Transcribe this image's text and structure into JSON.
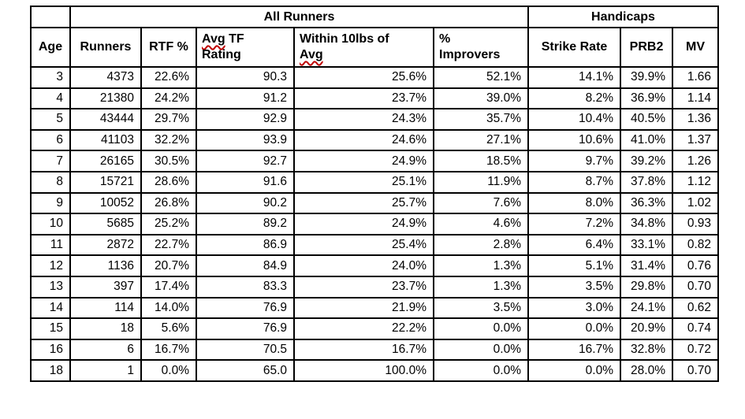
{
  "table": {
    "group_header": {
      "corner": "",
      "all_runners": "All Runners",
      "handicaps": "Handicaps"
    },
    "misspelling_color": "#c00000",
    "columns": [
      {
        "key": "age",
        "label": "Age"
      },
      {
        "key": "runners",
        "label": "Runners"
      },
      {
        "key": "rtf-pct",
        "label": "RTF %"
      },
      {
        "key": "avg-tf-rating",
        "label": "Avg TF Rating",
        "line1_word": "Avg",
        "line1_rest": " TF",
        "line2": "Rating"
      },
      {
        "key": "within-10lbs-of-avg",
        "label": "Within 10lbs of Avg",
        "line1": "Within 10lbs of",
        "line2_word": "Avg"
      },
      {
        "key": "pct-improvers",
        "label": "% Improvers",
        "line1": "%",
        "line2": "Improvers"
      },
      {
        "key": "strike-rate",
        "label": "Strike Rate"
      },
      {
        "key": "prb2",
        "label": "PRB2"
      },
      {
        "key": "mv",
        "label": "MV"
      }
    ],
    "rows": [
      [
        "3",
        "4373",
        "22.6%",
        "90.3",
        "25.6%",
        "52.1%",
        "14.1%",
        "39.9%",
        "1.66"
      ],
      [
        "4",
        "21380",
        "24.2%",
        "91.2",
        "23.7%",
        "39.0%",
        "8.2%",
        "36.9%",
        "1.14"
      ],
      [
        "5",
        "43444",
        "29.7%",
        "92.9",
        "24.3%",
        "35.7%",
        "10.4%",
        "40.5%",
        "1.36"
      ],
      [
        "6",
        "41103",
        "32.2%",
        "93.9",
        "24.6%",
        "27.1%",
        "10.6%",
        "41.0%",
        "1.37"
      ],
      [
        "7",
        "26165",
        "30.5%",
        "92.7",
        "24.9%",
        "18.5%",
        "9.7%",
        "39.2%",
        "1.26"
      ],
      [
        "8",
        "15721",
        "28.6%",
        "91.6",
        "25.1%",
        "11.9%",
        "8.7%",
        "37.8%",
        "1.12"
      ],
      [
        "9",
        "10052",
        "26.8%",
        "90.2",
        "25.7%",
        "7.6%",
        "8.0%",
        "36.3%",
        "1.02"
      ],
      [
        "10",
        "5685",
        "25.2%",
        "89.2",
        "24.9%",
        "4.6%",
        "7.2%",
        "34.8%",
        "0.93"
      ],
      [
        "11",
        "2872",
        "22.7%",
        "86.9",
        "25.4%",
        "2.8%",
        "6.4%",
        "33.1%",
        "0.82"
      ],
      [
        "12",
        "1136",
        "20.7%",
        "84.9",
        "24.0%",
        "1.3%",
        "5.1%",
        "31.4%",
        "0.76"
      ],
      [
        "13",
        "397",
        "17.4%",
        "83.3",
        "23.7%",
        "1.3%",
        "3.5%",
        "29.8%",
        "0.70"
      ],
      [
        "14",
        "114",
        "14.0%",
        "76.9",
        "21.9%",
        "3.5%",
        "3.0%",
        "24.1%",
        "0.62"
      ],
      [
        "15",
        "18",
        "5.6%",
        "76.9",
        "22.2%",
        "0.0%",
        "0.0%",
        "20.9%",
        "0.74"
      ],
      [
        "16",
        "6",
        "16.7%",
        "70.5",
        "16.7%",
        "0.0%",
        "16.7%",
        "32.8%",
        "0.72"
      ],
      [
        "18",
        "1",
        "0.0%",
        "65.0",
        "100.0%",
        "0.0%",
        "0.0%",
        "28.0%",
        "0.70"
      ]
    ]
  }
}
